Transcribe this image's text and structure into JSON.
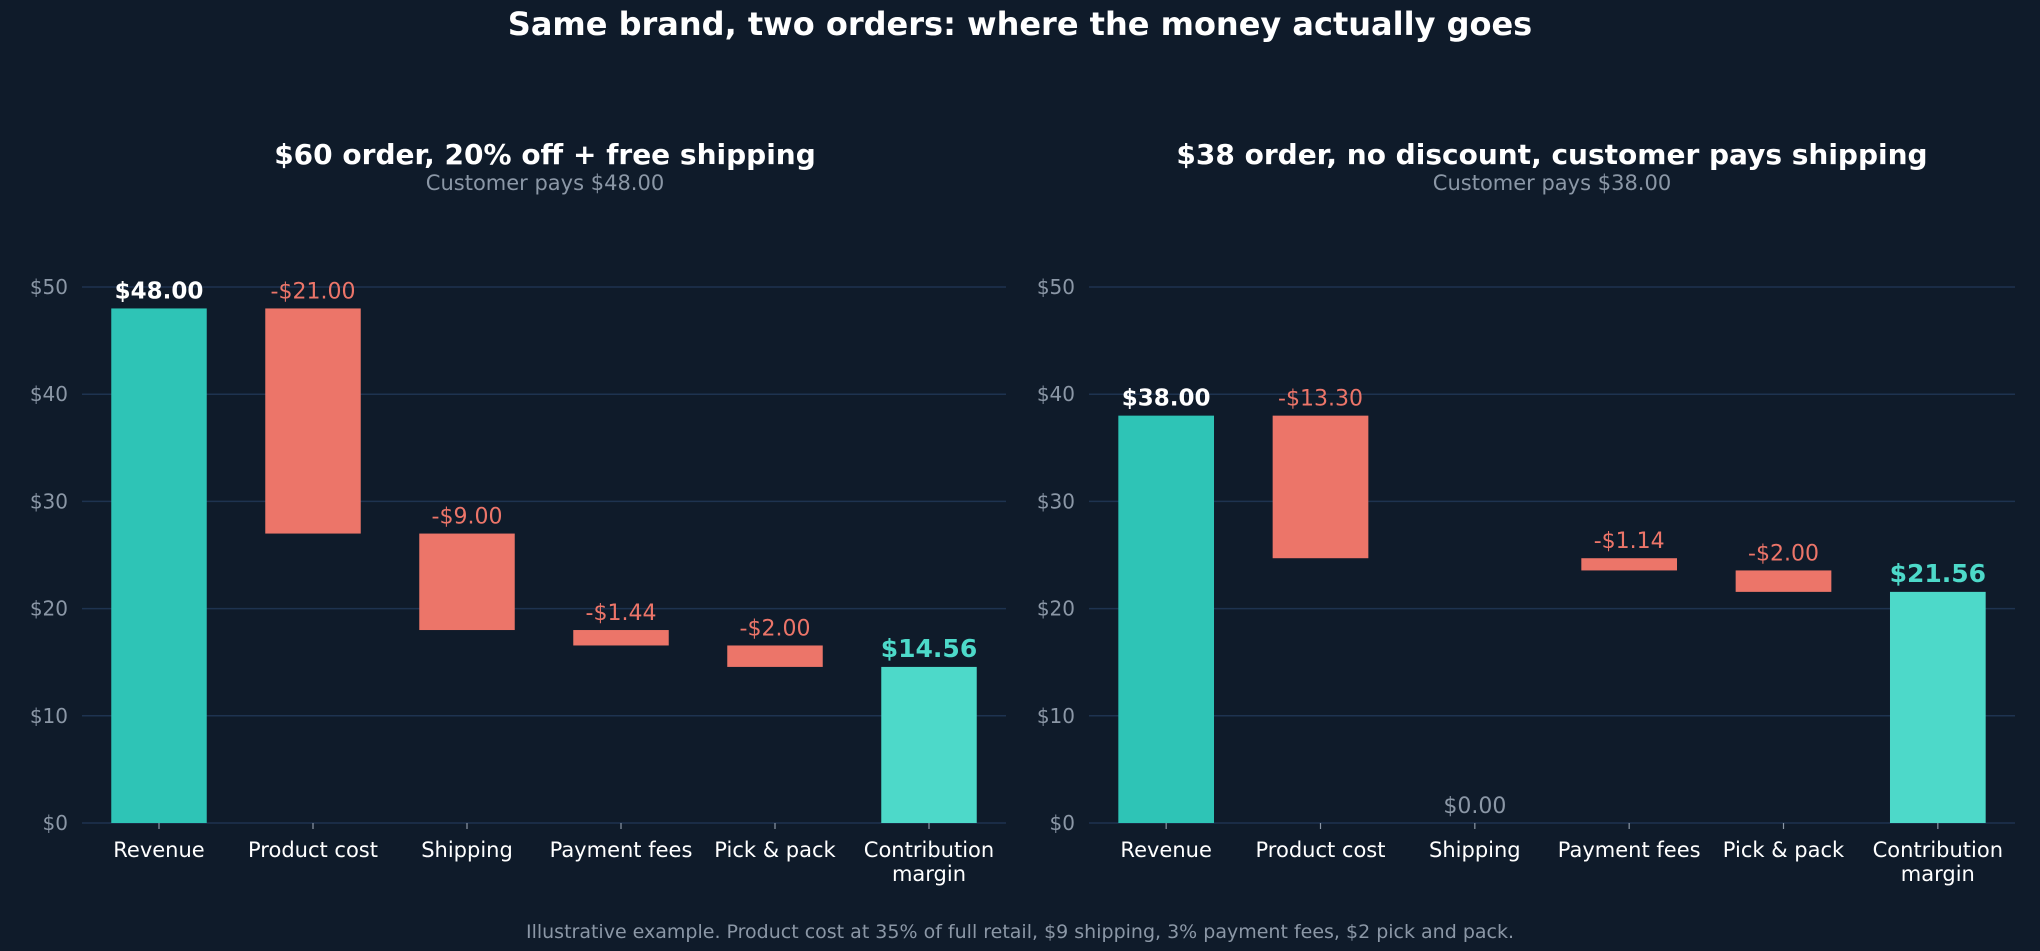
{
  "figure": {
    "title": "Same brand, two orders: where the money actually goes",
    "footnote": "Illustrative example. Product cost at 35% of full retail, $9 shipping, 3% payment fees, $2 pick and pack."
  },
  "colors": {
    "background": "#0f1b2a",
    "revenue": "#2ec4b6",
    "cost": "#ec7569",
    "margin": "#4dd9c9",
    "grid": "#1e3350",
    "tick_text": "#8b97a6",
    "label_text": "#ffffff",
    "subtitle_text": "#8b97a6",
    "zero_text": "#8b97a6"
  },
  "chart_data": [
    {
      "type": "bar",
      "subtype": "waterfall",
      "title": "$60 order, 20% off + free shipping",
      "subtitle": "Customer pays $48.00",
      "categories": [
        "Revenue",
        "Product cost",
        "Shipping",
        "Payment fees",
        "Pick & pack",
        "Contribution margin"
      ],
      "values": [
        48.0,
        -21.0,
        -9.0,
        -1.44,
        -2.0,
        14.56
      ],
      "kinds": [
        "revenue",
        "cost",
        "cost",
        "cost",
        "cost",
        "margin"
      ],
      "data_labels": [
        "$48.00",
        "-$21.00",
        "-$9.00",
        "-$1.44",
        "-$2.00",
        "$14.56"
      ],
      "ylim": [
        0,
        52
      ],
      "yticks": [
        0,
        10,
        20,
        30,
        40,
        50
      ],
      "ytick_labels": [
        "$0",
        "$10",
        "$20",
        "$30",
        "$40",
        "$50"
      ],
      "grid": true
    },
    {
      "type": "bar",
      "subtype": "waterfall",
      "title": "$38 order, no discount, customer pays shipping",
      "subtitle": "Customer pays $38.00",
      "categories": [
        "Revenue",
        "Product cost",
        "Shipping",
        "Payment fees",
        "Pick & pack",
        "Contribution margin"
      ],
      "values": [
        38.0,
        -13.3,
        0.0,
        -1.14,
        -2.0,
        21.56
      ],
      "kinds": [
        "revenue",
        "cost",
        "zero",
        "cost",
        "cost",
        "margin"
      ],
      "data_labels": [
        "$38.00",
        "-$13.30",
        "$0.00",
        "-$1.14",
        "-$2.00",
        "$21.56"
      ],
      "ylim": [
        0,
        52
      ],
      "yticks": [
        0,
        10,
        20,
        30,
        40,
        50
      ],
      "ytick_labels": [
        "$0",
        "$10",
        "$20",
        "$30",
        "$40",
        "$50"
      ],
      "grid": true
    }
  ]
}
